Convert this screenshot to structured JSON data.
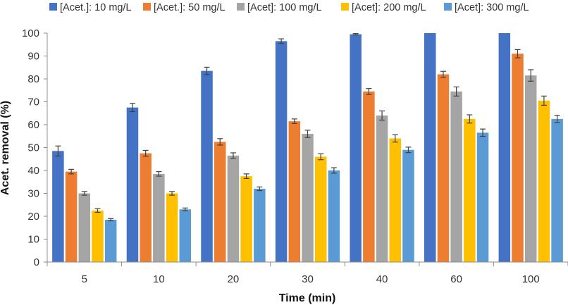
{
  "chart_data": {
    "type": "bar",
    "title": "",
    "xlabel": "Time (min)",
    "ylabel": "Acet. removal (%)",
    "ylim": [
      0,
      100
    ],
    "yticks": [
      0,
      10,
      20,
      30,
      40,
      50,
      60,
      70,
      80,
      90,
      100
    ],
    "grid": false,
    "legend_position": "top",
    "categories": [
      "5",
      "10",
      "20",
      "30",
      "40",
      "60",
      "100"
    ],
    "series": [
      {
        "name": "[Acet.]: 10 mg/L",
        "color": "#4472C4",
        "values": [
          48.5,
          67.5,
          83.5,
          96.5,
          99.5,
          100,
          100
        ],
        "errors": [
          2.2,
          1.8,
          1.6,
          1.0,
          0.3,
          0,
          0
        ]
      },
      {
        "name": "[Acet.]: 50 mg/L",
        "color": "#ED7D31",
        "values": [
          39.5,
          47.5,
          52.5,
          61.5,
          74.5,
          82,
          91
        ],
        "errors": [
          1.0,
          1.3,
          1.4,
          1.0,
          1.3,
          1.3,
          1.8
        ]
      },
      {
        "name": "[Acet]: 100 mg/L",
        "color": "#A5A5A5",
        "values": [
          30,
          38.5,
          46.5,
          56,
          64,
          74.5,
          81.5
        ],
        "errors": [
          0.8,
          1.0,
          1.2,
          1.6,
          2.0,
          2.0,
          2.5
        ]
      },
      {
        "name": "[Acet]: 200 mg/L",
        "color": "#FFC000",
        "values": [
          22.5,
          30,
          37.5,
          46,
          54,
          62.5,
          70.5
        ],
        "errors": [
          0.8,
          0.8,
          1.0,
          1.3,
          1.6,
          1.8,
          2.0
        ]
      },
      {
        "name": "[Acet]: 300 mg/L",
        "color": "#5B9BD5",
        "values": [
          18.5,
          23,
          32,
          40,
          49,
          56.5,
          62.5
        ],
        "errors": [
          0.5,
          0.6,
          0.8,
          1.2,
          1.2,
          1.6,
          1.6
        ]
      }
    ]
  }
}
